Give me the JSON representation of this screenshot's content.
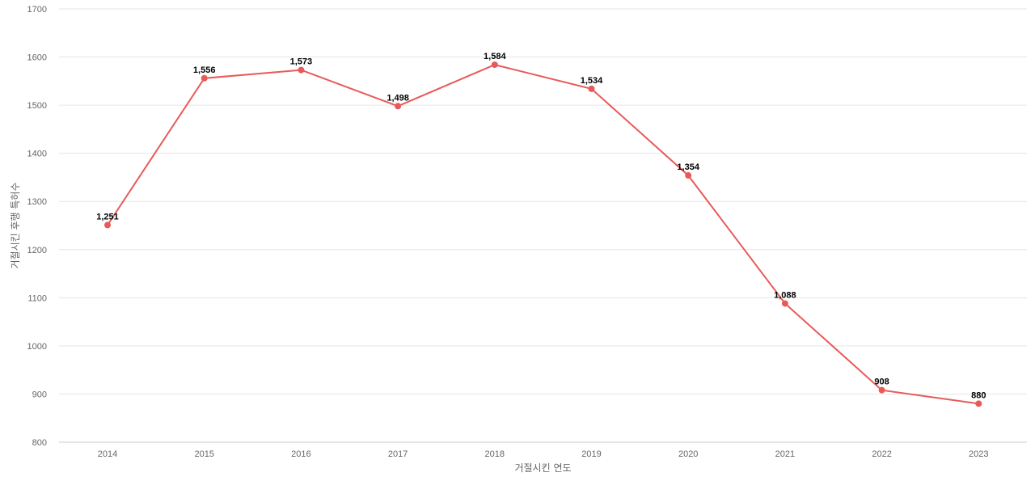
{
  "chart_data": {
    "type": "line",
    "title": "",
    "xlabel": "거절시킨 연도",
    "ylabel": "거절시킨 후행 특허수",
    "categories": [
      "2014",
      "2015",
      "2016",
      "2017",
      "2018",
      "2019",
      "2020",
      "2021",
      "2022",
      "2023"
    ],
    "series": [
      {
        "values": [
          1251,
          1556,
          1573,
          1498,
          1584,
          1534,
          1354,
          1088,
          908,
          880
        ]
      }
    ],
    "data_labels": [
      "1,251",
      "1,556",
      "1,573",
      "1,498",
      "1,584",
      "1,534",
      "1,354",
      "1,088",
      "908",
      "880"
    ],
    "ylim": [
      800,
      1700
    ],
    "yticks": [
      "800",
      "900",
      "1000",
      "1100",
      "1200",
      "1300",
      "1400",
      "1500",
      "1600",
      "1700"
    ],
    "grid": true,
    "line_color": "#e85a5a"
  }
}
